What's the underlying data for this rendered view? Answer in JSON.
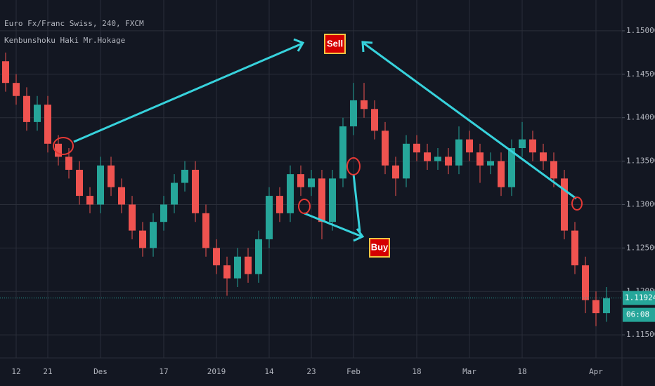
{
  "chart_data": {
    "type": "candlestick",
    "title": "Euro Fx/Franc Swiss, 240, FXCM",
    "subtitle": "Kenbunshoku Haki Mr.Hokage",
    "categories": [
      null,
      "12",
      null,
      null,
      "21",
      null,
      null,
      null,
      null,
      "Des",
      null,
      null,
      null,
      null,
      null,
      "17",
      null,
      null,
      null,
      null,
      "2019",
      null,
      null,
      null,
      null,
      "14",
      null,
      null,
      null,
      "23",
      null,
      null,
      null,
      "Feb",
      null,
      null,
      null,
      null,
      null,
      "18",
      null,
      null,
      null,
      null,
      "Mar",
      null,
      null,
      null,
      null,
      "18",
      null,
      null,
      null,
      null,
      null,
      null,
      "Apr",
      null
    ],
    "open": [
      1.1465,
      1.144,
      1.1425,
      1.1395,
      1.1415,
      1.137,
      1.1355,
      1.134,
      1.131,
      1.13,
      1.1345,
      1.132,
      1.13,
      1.127,
      1.125,
      1.128,
      1.13,
      1.1325,
      1.134,
      1.129,
      1.125,
      1.123,
      1.1215,
      1.124,
      1.122,
      1.126,
      1.131,
      1.129,
      1.1335,
      1.132,
      1.133,
      1.128,
      1.133,
      1.139,
      1.142,
      1.141,
      1.1385,
      1.1345,
      1.133,
      1.137,
      1.136,
      1.135,
      1.1355,
      1.1345,
      1.1375,
      1.136,
      1.1345,
      1.135,
      1.132,
      1.1365,
      1.1375,
      1.136,
      1.135,
      1.133,
      1.127,
      1.123,
      1.119,
      1.1175
    ],
    "high": [
      1.1475,
      1.145,
      1.1435,
      1.1425,
      1.1425,
      1.138,
      1.1365,
      1.135,
      1.132,
      1.1355,
      1.1355,
      1.133,
      1.131,
      1.128,
      1.129,
      1.131,
      1.1335,
      1.135,
      1.135,
      1.13,
      1.126,
      1.124,
      1.125,
      1.125,
      1.127,
      1.132,
      1.132,
      1.1345,
      1.1345,
      1.134,
      1.134,
      1.134,
      1.14,
      1.144,
      1.144,
      1.142,
      1.1395,
      1.1355,
      1.138,
      1.138,
      1.137,
      1.1365,
      1.1365,
      1.139,
      1.1385,
      1.137,
      1.136,
      1.136,
      1.1375,
      1.1395,
      1.1385,
      1.137,
      1.136,
      1.134,
      1.128,
      1.124,
      1.12,
      1.1205
    ],
    "low": [
      1.143,
      1.1415,
      1.1385,
      1.1385,
      1.136,
      1.1345,
      1.133,
      1.13,
      1.129,
      1.129,
      1.131,
      1.129,
      1.126,
      1.124,
      1.124,
      1.127,
      1.129,
      1.1315,
      1.128,
      1.124,
      1.122,
      1.1195,
      1.1205,
      1.121,
      1.121,
      1.125,
      1.128,
      1.128,
      1.131,
      1.131,
      1.126,
      1.127,
      1.132,
      1.138,
      1.14,
      1.1375,
      1.1335,
      1.131,
      1.132,
      1.135,
      1.134,
      1.134,
      1.1335,
      1.1335,
      1.135,
      1.1325,
      1.1335,
      1.131,
      1.131,
      1.1355,
      1.135,
      1.134,
      1.132,
      1.126,
      1.122,
      1.1175,
      1.116,
      1.1165
    ],
    "close": [
      1.144,
      1.1425,
      1.1395,
      1.1415,
      1.137,
      1.1355,
      1.134,
      1.131,
      1.13,
      1.1345,
      1.132,
      1.13,
      1.127,
      1.125,
      1.128,
      1.13,
      1.1325,
      1.134,
      1.129,
      1.125,
      1.123,
      1.1215,
      1.124,
      1.122,
      1.126,
      1.131,
      1.129,
      1.1335,
      1.132,
      1.133,
      1.128,
      1.133,
      1.139,
      1.142,
      1.141,
      1.1385,
      1.1345,
      1.133,
      1.137,
      1.136,
      1.135,
      1.1355,
      1.1345,
      1.1375,
      1.136,
      1.1345,
      1.135,
      1.132,
      1.1365,
      1.1375,
      1.136,
      1.135,
      1.133,
      1.127,
      1.123,
      1.119,
      1.1175,
      1.1192
    ],
    "up_color": "#26a69a",
    "down_color": "#ef5350",
    "ylim": [
      1.11234,
      1.15355
    ],
    "yticks": [
      {
        "value": 1.15,
        "label": "1.15000"
      },
      {
        "value": 1.145,
        "label": "1.14500"
      },
      {
        "value": 1.14,
        "label": "1.14000"
      },
      {
        "value": 1.135,
        "label": "1.13500"
      },
      {
        "value": 1.13,
        "label": "1.13000"
      },
      {
        "value": 1.125,
        "label": "1.12500"
      },
      {
        "value": 1.12,
        "label": "1.12000"
      },
      {
        "value": 1.115,
        "label": "1.11500"
      }
    ],
    "grid": true,
    "last_price": 1.11924,
    "countdown": "06:08",
    "annotations": [
      "Sell",
      "Buy"
    ]
  }
}
